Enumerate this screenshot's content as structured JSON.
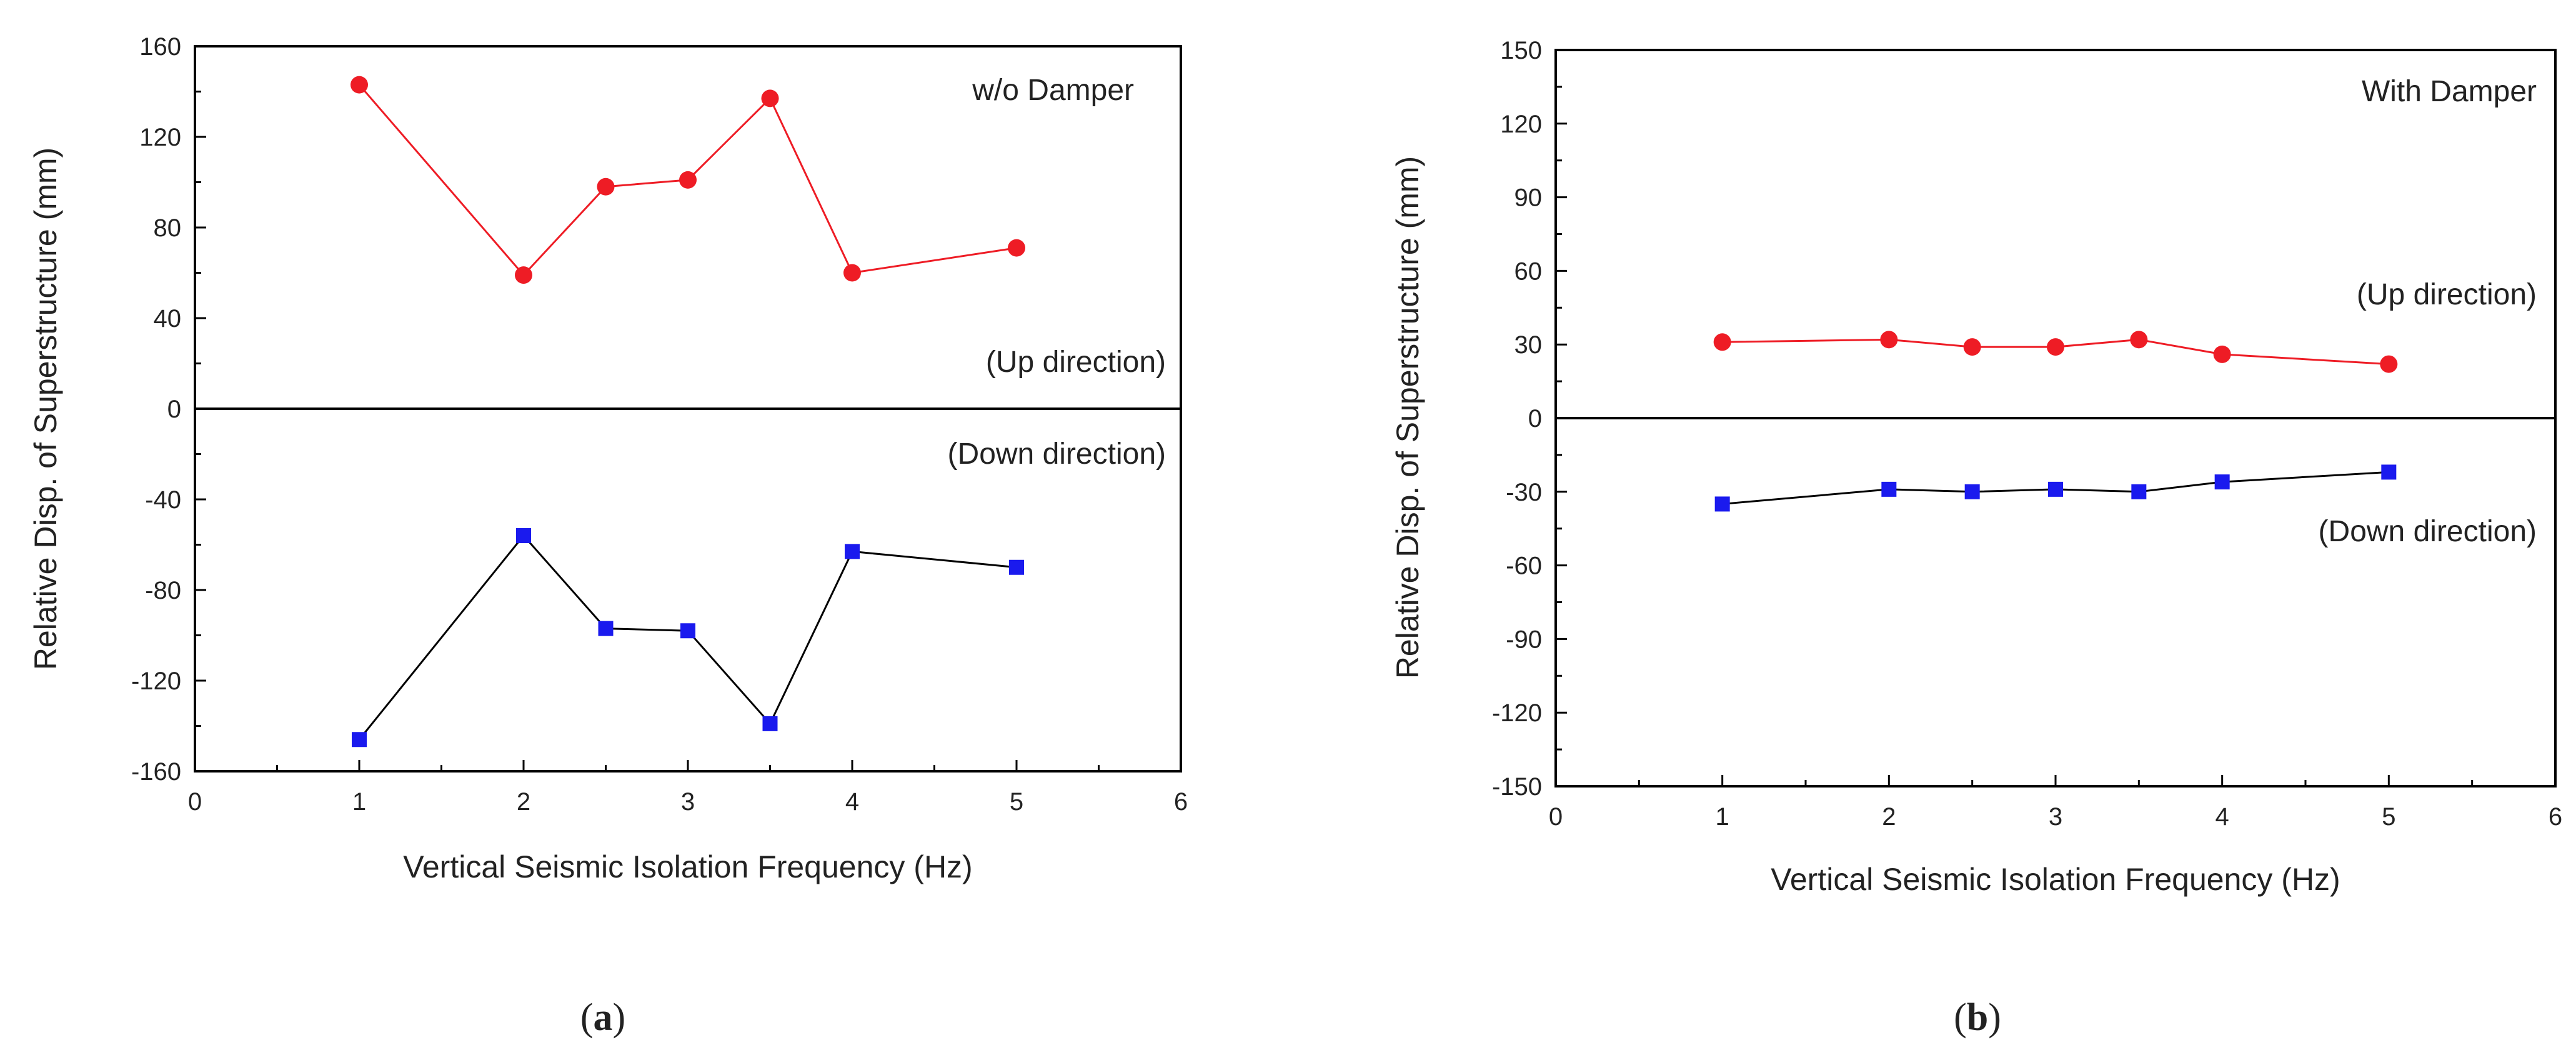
{
  "chart_data": [
    {
      "type": "line",
      "panel_label": "a",
      "title": "",
      "annotation": "w/o Damper",
      "up_label": "(Up direction)",
      "down_label": "(Down direction)",
      "xlabel": "Vertical Seismic Isolation Frequency (Hz)",
      "ylabel": "Relative Disp. of Superstructure (mm)",
      "xlim": [
        0,
        6
      ],
      "ylim": [
        -160,
        160
      ],
      "xticks": [
        0,
        1,
        2,
        3,
        4,
        5,
        6
      ],
      "yticks": [
        -160,
        -120,
        -80,
        -40,
        0,
        40,
        80,
        120,
        160
      ],
      "legend": "none",
      "series": [
        {
          "name": "Up direction",
          "color": "#ee1c25",
          "line_color": "#ee1c25",
          "marker": "circle",
          "x": [
            1,
            2,
            2.5,
            3,
            3.5,
            4,
            5
          ],
          "values": [
            143,
            59,
            98,
            101,
            137,
            60,
            71
          ]
        },
        {
          "name": "Down direction",
          "color": "#1a1aee",
          "line_color": "#000000",
          "marker": "square",
          "x": [
            1,
            2,
            2.5,
            3,
            3.5,
            4,
            5
          ],
          "values": [
            -146,
            -56,
            -97,
            -98,
            -139,
            -63,
            -70
          ]
        }
      ]
    },
    {
      "type": "line",
      "panel_label": "b",
      "title": "",
      "annotation": "With Damper",
      "up_label": "(Up direction)",
      "down_label": "(Down direction)",
      "xlabel": "Vertical Seismic Isolation Frequency (Hz)",
      "ylabel": "Relative Disp. of Superstructure (mm)",
      "xlim": [
        0,
        6
      ],
      "ylim": [
        -150,
        150
      ],
      "xticks": [
        0,
        1,
        2,
        3,
        4,
        5,
        6
      ],
      "yticks": [
        -150,
        -120,
        -90,
        -60,
        -30,
        0,
        30,
        60,
        90,
        120,
        150
      ],
      "legend": "none",
      "series": [
        {
          "name": "Up direction",
          "color": "#ee1c25",
          "line_color": "#ee1c25",
          "marker": "circle",
          "x": [
            1,
            2,
            2.5,
            3,
            3.5,
            4,
            5
          ],
          "values": [
            31,
            32,
            29,
            29,
            32,
            26,
            22
          ]
        },
        {
          "name": "Down direction",
          "color": "#1a1aee",
          "line_color": "#000000",
          "marker": "square",
          "x": [
            1,
            2,
            2.5,
            3,
            3.5,
            4,
            5
          ],
          "values": [
            -35,
            -29,
            -30,
            -29,
            -30,
            -26,
            -22
          ]
        }
      ]
    }
  ]
}
